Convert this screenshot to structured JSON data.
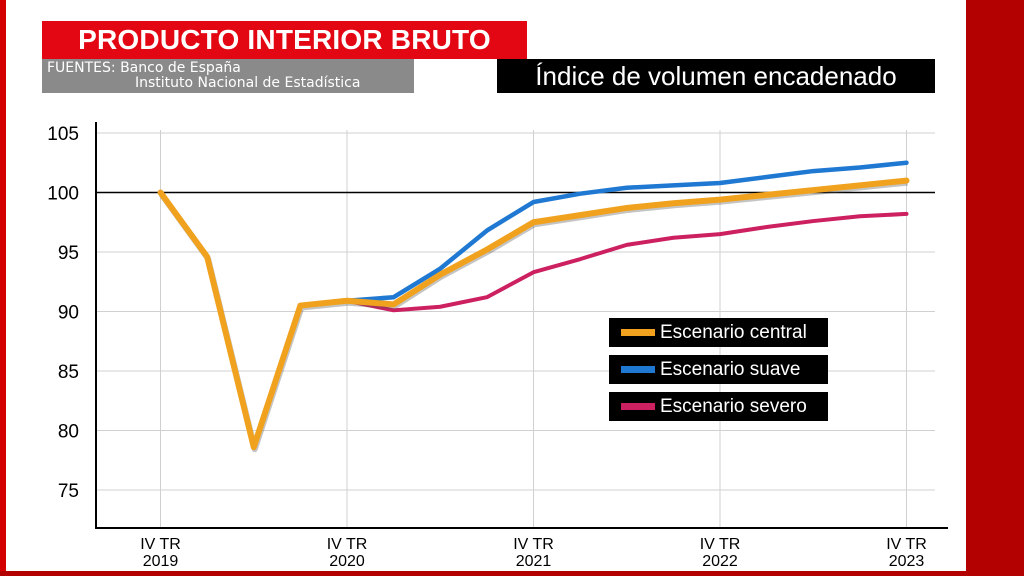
{
  "header": {
    "title": "PRODUCTO INTERIOR BRUTO",
    "sources_line1": "FUENTES: Banco de España",
    "sources_line2": "Instituto Nacional de Estadística",
    "subtitle": "Índice de volumen encadenado"
  },
  "colors": {
    "frame": "#b30000",
    "title_bg": "#e30613",
    "central": "#f0a21e",
    "suave": "#1f78d1",
    "severo": "#cc2060"
  },
  "chart_data": {
    "type": "line",
    "title": "PRODUCTO INTERIOR BRUTO",
    "subtitle": "Índice de volumen encadenado",
    "ylim": [
      72,
      106
    ],
    "yticks": [
      75,
      80,
      85,
      90,
      95,
      100,
      105
    ],
    "x_ticks": [
      {
        "x": 0,
        "line1": "IV TR",
        "line2": "2019"
      },
      {
        "x": 4,
        "line1": "IV TR",
        "line2": "2020"
      },
      {
        "x": 8,
        "line1": "IV TR",
        "line2": "2021"
      },
      {
        "x": 12,
        "line1": "IV TR",
        "line2": "2022"
      },
      {
        "x": 16,
        "line1": "IV TR",
        "line2": "2023"
      }
    ],
    "reference_line": 100,
    "grid": true,
    "legend_position": "right",
    "series": [
      {
        "name": "Escenario suave",
        "color_key": "suave",
        "x": [
          4,
          5,
          6,
          7,
          8,
          9,
          10,
          11,
          12,
          13,
          14,
          15,
          16
        ],
        "values": [
          90.9,
          91.2,
          93.6,
          96.8,
          99.2,
          99.9,
          100.4,
          100.6,
          100.8,
          101.3,
          101.8,
          102.1,
          102.5
        ]
      },
      {
        "name": "Escenario severo",
        "color_key": "severo",
        "x": [
          4,
          5,
          6,
          7,
          8,
          9,
          10,
          11,
          12,
          13,
          14,
          15,
          16
        ],
        "values": [
          90.9,
          90.1,
          90.4,
          91.2,
          93.3,
          94.4,
          95.6,
          96.2,
          96.5,
          97.1,
          97.6,
          98.0,
          98.2
        ]
      },
      {
        "name": "Escenario central",
        "color_key": "central",
        "x": [
          0,
          1,
          2,
          3,
          4,
          5,
          6,
          7,
          8,
          9,
          10,
          11,
          12,
          13,
          14,
          15,
          16
        ],
        "values": [
          100.0,
          94.6,
          78.6,
          90.5,
          90.9,
          90.6,
          93.1,
          95.2,
          97.5,
          98.1,
          98.7,
          99.1,
          99.4,
          99.8,
          100.2,
          100.6,
          101.0
        ]
      }
    ],
    "legend": [
      {
        "label": "Escenario central",
        "color_key": "central"
      },
      {
        "label": "Escenario suave",
        "color_key": "suave"
      },
      {
        "label": "Escenario severo",
        "color_key": "severo"
      }
    ]
  }
}
